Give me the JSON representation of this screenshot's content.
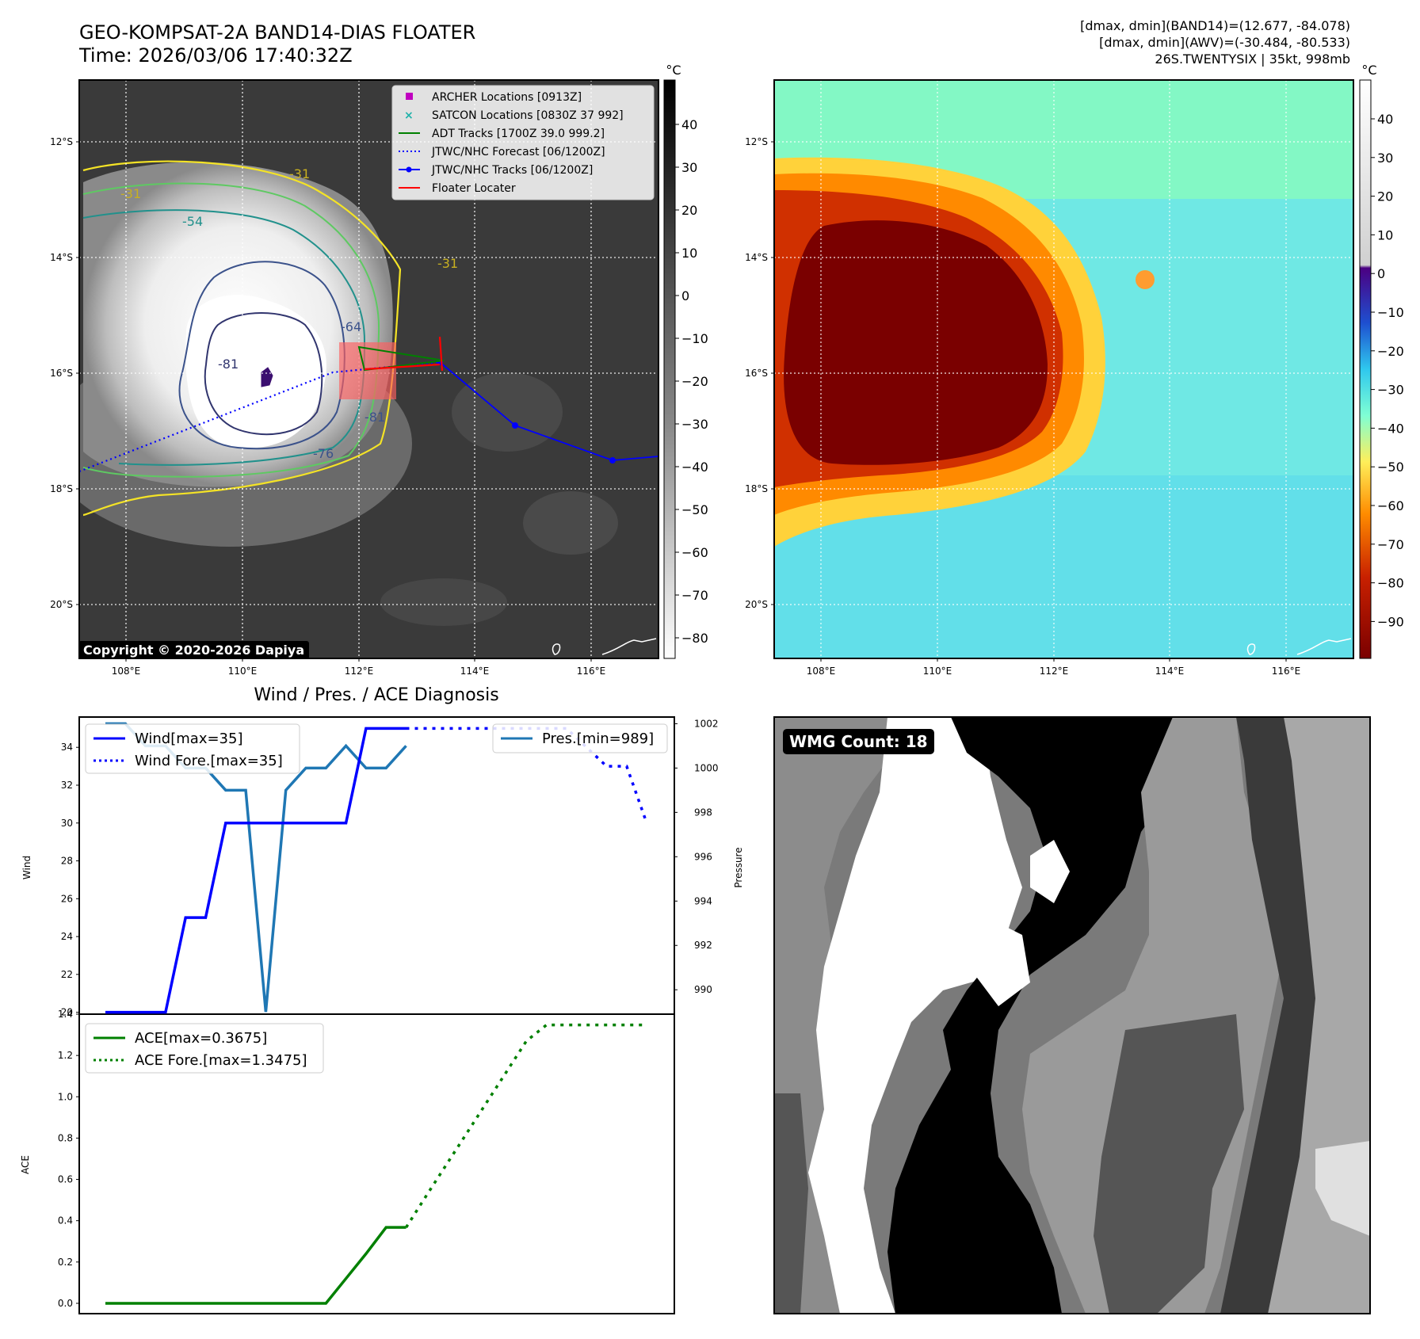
{
  "header": {
    "title_line1": "GEO-KOMPSAT-2A BAND14-DIAS FLOATER",
    "title_line2": "Time: 2026/03/06 17:40:32Z",
    "info_line1": "[dmax, dmin](BAND14)=(12.677, -84.078)",
    "info_line2": "[dmax, dmin](AWV)=(-30.484, -80.533)",
    "info_line3": "26S.TWENTYSIX | 35kt, 998mb"
  },
  "map": {
    "lat_labels": [
      "12°S",
      "14°S",
      "16°S",
      "18°S",
      "20°S"
    ],
    "lon_labels": [
      "108°E",
      "110°E",
      "112°E",
      "114°E",
      "116°E"
    ],
    "contour_labels": [
      "-31",
      "-31",
      "-54",
      "-64",
      "-81",
      "-81",
      "-76",
      "-31"
    ],
    "copyright": "Copyright © 2020-2026 Dapiya"
  },
  "ir_colorbar": {
    "unit": "°C",
    "ticks": [
      "40",
      "30",
      "20",
      "10",
      "0",
      "−10",
      "−20",
      "−30",
      "−40",
      "−50",
      "−60",
      "−70",
      "−80"
    ]
  },
  "awv_colorbar": {
    "unit": "°C",
    "ticks": [
      "40",
      "30",
      "20",
      "10",
      "0",
      "−10",
      "−20",
      "−30",
      "−40",
      "−50",
      "−60",
      "−70",
      "−80",
      "−90"
    ]
  },
  "legend_map": [
    {
      "label": "ARCHER Locations [0913Z]",
      "color": "#c000c0",
      "symbol": "square"
    },
    {
      "label": "SATCON Locations [0830Z 37 992]",
      "color": "#20b2aa",
      "symbol": "x"
    },
    {
      "label": "ADT Tracks [1700Z 39.0 999.2]",
      "color": "#008000",
      "symbol": "line"
    },
    {
      "label": "JTWC/NHC Forecast [06/1200Z]",
      "color": "#0000ff",
      "symbol": "dotted"
    },
    {
      "label": "JTWC/NHC Tracks [06/1200Z]",
      "color": "#0000ff",
      "symbol": "line-dot"
    },
    {
      "label": "Floater Locater",
      "color": "#ff0000",
      "symbol": "line"
    }
  ],
  "diag": {
    "title": "Wind / Pres. / ACE Diagnosis",
    "wind_axis_label": "Wind",
    "pres_axis_label": "Pressure",
    "ace_axis_label": "ACE",
    "wind_ticks": [
      "20",
      "22",
      "24",
      "26",
      "28",
      "30",
      "32",
      "34"
    ],
    "pres_ticks": [
      "990",
      "992",
      "994",
      "996",
      "998",
      "1000",
      "1002"
    ],
    "ace_ticks": [
      "0.0",
      "0.2",
      "0.4",
      "0.6",
      "0.8",
      "1.0",
      "1.2",
      "1.4"
    ],
    "legend_wind": "Wind[max=35]",
    "legend_wind_fore": "Wind Fore.[max=35]",
    "legend_pres": "Pres.[min=989]",
    "legend_ace": "ACE[max=0.3675]",
    "legend_ace_fore": "ACE Fore.[max=1.3475]"
  },
  "wmg": {
    "label": "WMG Count: 18"
  },
  "chart_data": [
    {
      "type": "line",
      "title": "Wind / Pres. / ACE Diagnosis",
      "ylabel": "Wind",
      "ylim": [
        19.9,
        35.6
      ],
      "series": [
        {
          "name": "Wind[max=35]",
          "x": [
            0,
            1,
            2,
            3,
            4,
            5,
            6,
            7,
            8,
            9,
            10,
            11,
            12,
            13,
            14,
            15
          ],
          "values": [
            20,
            20,
            20,
            20,
            25,
            25,
            30,
            30,
            30,
            30,
            30,
            30,
            30,
            35,
            35,
            35
          ],
          "color": "#0000ff",
          "style": "solid"
        },
        {
          "name": "Wind Fore.[max=35]",
          "x": [
            15,
            16,
            17,
            18,
            19,
            20,
            21,
            22,
            23,
            24,
            25,
            26,
            27
          ],
          "values": [
            35,
            35,
            35,
            35,
            35,
            35,
            35,
            35,
            35,
            34,
            33,
            33,
            30
          ],
          "color": "#0000ff",
          "style": "dotted"
        }
      ]
    },
    {
      "type": "line",
      "ylabel": "Pressure",
      "ylim": [
        988.9,
        1002.3
      ],
      "series": [
        {
          "name": "Pres.[min=989]",
          "x": [
            0,
            1,
            2,
            3,
            4,
            5,
            6,
            7,
            8,
            9,
            10,
            11,
            12,
            13,
            14,
            15
          ],
          "values": [
            1002,
            1002,
            1001,
            1001,
            1000,
            1000,
            999,
            999,
            989,
            999,
            1000,
            1000,
            1001,
            1000,
            1000,
            1001
          ],
          "color": "#1f77b4",
          "style": "solid"
        }
      ]
    },
    {
      "type": "line",
      "ylabel": "ACE",
      "ylim": [
        -0.05,
        1.4
      ],
      "series": [
        {
          "name": "ACE[max=0.3675]",
          "x": [
            0,
            1,
            2,
            3,
            4,
            5,
            6,
            7,
            8,
            9,
            10,
            11,
            12,
            13,
            14,
            15
          ],
          "values": [
            0,
            0,
            0,
            0,
            0,
            0,
            0,
            0,
            0,
            0,
            0,
            0,
            0.12,
            0.24,
            0.3675,
            0.3675
          ],
          "color": "#008000",
          "style": "solid"
        },
        {
          "name": "ACE Fore.[max=1.3475]",
          "x": [
            15,
            16,
            17,
            18,
            19,
            20,
            21,
            22,
            23,
            24,
            25,
            26,
            27
          ],
          "values": [
            0.3675,
            0.52,
            0.67,
            0.82,
            0.97,
            1.12,
            1.27,
            1.3475,
            1.3475,
            1.3475,
            1.3475,
            1.3475,
            1.3475
          ],
          "color": "#008000",
          "style": "dotted"
        }
      ]
    }
  ]
}
